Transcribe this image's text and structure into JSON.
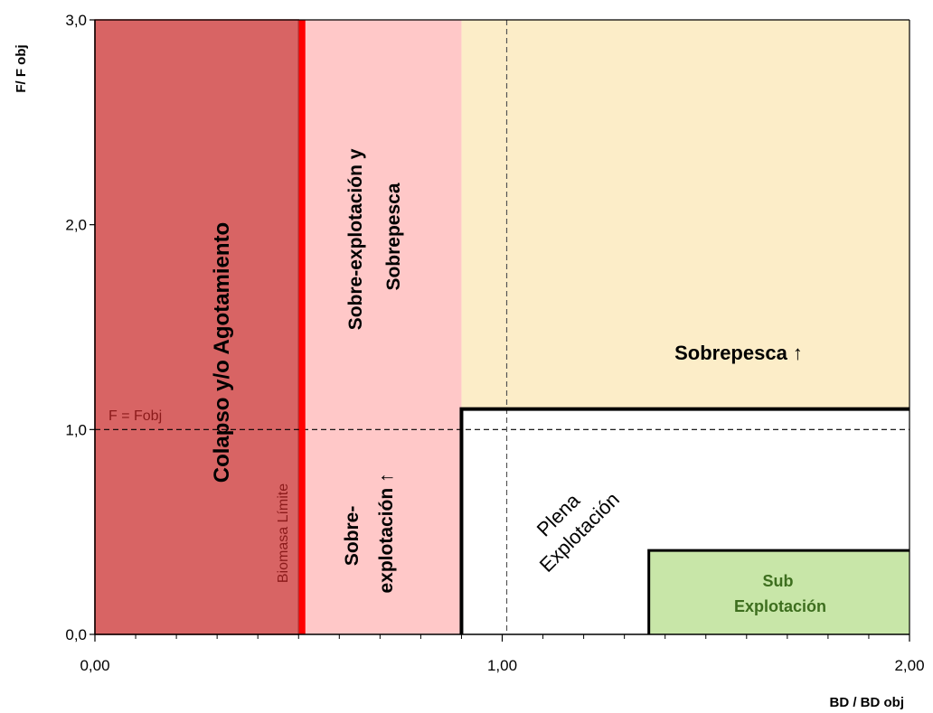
{
  "chart_data": {
    "type": "area",
    "title": "",
    "xlabel": "BD / BD obj",
    "ylabel": "F/ F obj",
    "xlim": [
      0,
      2
    ],
    "ylim": [
      0,
      3
    ],
    "x_ticks": [
      "0,00",
      "1,00",
      "2,00"
    ],
    "y_ticks": [
      "0,0",
      "1,0",
      "2,0",
      "3,0"
    ],
    "x_minor_step": 0.1,
    "zones": [
      {
        "name": "colapso",
        "label_lines": [
          "Colapso y/o Agotamiento"
        ],
        "x": [
          0,
          0.5
        ],
        "y": [
          0,
          3
        ],
        "color": "#d86464"
      },
      {
        "name": "sobre-explotacion-sobrepesca",
        "label_lines": [
          "Sobre-explotación y",
          "Sobrepesca"
        ],
        "x": [
          0.5,
          0.9
        ],
        "y": [
          1.0,
          3
        ],
        "color": "#ffc8c8"
      },
      {
        "name": "sobre-explotacion",
        "label_lines": [
          "Sobre-",
          "explotación ↑"
        ],
        "x": [
          0.5,
          0.9
        ],
        "y": [
          0,
          1.0
        ],
        "color": "#ffc8c8"
      },
      {
        "name": "sobrepesca",
        "label_lines": [
          "Sobrepesca ↑"
        ],
        "x": [
          0.9,
          2
        ],
        "y": [
          1.1,
          3
        ],
        "color": "#fcedc8"
      },
      {
        "name": "plena-explotacion",
        "label_lines": [
          "Plena",
          "Explotación"
        ],
        "x": [
          0.9,
          2
        ],
        "y": [
          0,
          1.1
        ],
        "color": "#ffffff"
      },
      {
        "name": "sub-explotacion",
        "label_lines": [
          "Sub",
          "Explotación"
        ],
        "x": [
          1.36,
          2
        ],
        "y": [
          0,
          0.41
        ],
        "color": "#c8e6a8"
      }
    ],
    "reference_lines": [
      {
        "name": "biomasa-limite",
        "label": "Biomasa Límite",
        "axis": "x",
        "value": 0.5,
        "color": "#ff0000"
      },
      {
        "name": "f-fobj",
        "label": "F = Fobj",
        "axis": "y",
        "value": 1.0,
        "style": "dashed"
      },
      {
        "name": "bd-bdobj",
        "label": "",
        "axis": "x",
        "value": 1.0,
        "style": "dashed"
      }
    ]
  }
}
